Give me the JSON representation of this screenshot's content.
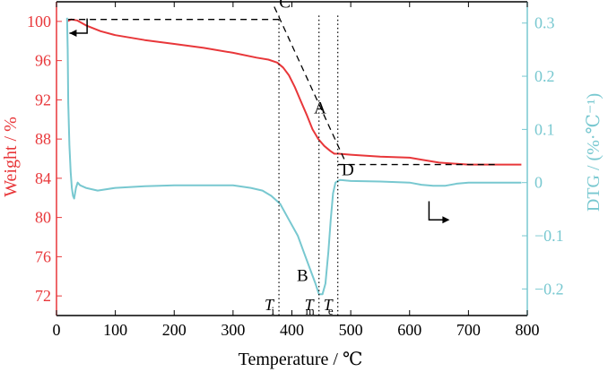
{
  "chart_data": {
    "type": "line",
    "xlabel": "Temperature / ℃",
    "ylabel_left": "Weight / %",
    "ylabel_right": "DTG / (%·℃⁻¹)",
    "xlim": [
      0,
      800
    ],
    "ylim_left": [
      70,
      102
    ],
    "ylim_right": [
      -0.25,
      0.34
    ],
    "x_ticks": [
      0,
      100,
      200,
      300,
      400,
      500,
      600,
      700,
      800
    ],
    "y_left_ticks": [
      72,
      76,
      80,
      84,
      88,
      92,
      96,
      100
    ],
    "y_right_ticks": [
      -0.2,
      -0.1,
      0,
      0.1,
      0.2,
      0.3
    ],
    "x_tick_labels": [
      "0",
      "100",
      "200",
      "300",
      "400",
      "500",
      "600",
      "700",
      "800"
    ],
    "y_left_tick_labels": [
      "72",
      "76",
      "80",
      "84",
      "88",
      "92",
      "96",
      "100"
    ],
    "y_right_tick_labels": [
      "−0.2",
      "−0.1",
      "0",
      "0.1",
      "0.2",
      "0.3"
    ],
    "colors": {
      "weight": "#e8373a",
      "dtg": "#78c8d0",
      "axis_left": "#e8373a",
      "axis_right": "#78c8d0",
      "guides": "#000000"
    },
    "series": [
      {
        "axis": "left",
        "x": [
          18,
          25,
          35,
          50,
          75,
          100,
          150,
          200,
          250,
          300,
          340,
          360,
          375,
          385,
          395,
          405,
          415,
          425,
          435,
          445,
          455,
          465,
          472,
          480,
          500,
          550,
          600,
          620,
          650,
          700,
          750,
          790
        ],
        "values": [
          100.0,
          100.2,
          100.1,
          99.6,
          99.0,
          98.6,
          98.1,
          97.7,
          97.3,
          96.8,
          96.3,
          96.1,
          95.8,
          95.3,
          94.5,
          93.3,
          91.9,
          90.5,
          89.0,
          88.0,
          87.3,
          86.8,
          86.5,
          86.5,
          86.4,
          86.2,
          86.1,
          85.9,
          85.6,
          85.4,
          85.4,
          85.4
        ]
      },
      {
        "axis": "right",
        "x": [
          18,
          19,
          20,
          22,
          24,
          26,
          28,
          30,
          33,
          36,
          40,
          50,
          70,
          100,
          150,
          200,
          250,
          300,
          330,
          350,
          365,
          380,
          395,
          410,
          420,
          430,
          440,
          446,
          452,
          457,
          462,
          466,
          470,
          474,
          478,
          482,
          490,
          500,
          550,
          600,
          620,
          640,
          660,
          680,
          700,
          750,
          790
        ],
        "values": [
          0.31,
          0.25,
          0.15,
          0.07,
          0.02,
          -0.01,
          -0.025,
          -0.03,
          -0.01,
          0.0,
          -0.005,
          -0.01,
          -0.015,
          -0.01,
          -0.007,
          -0.005,
          -0.005,
          -0.005,
          -0.01,
          -0.015,
          -0.025,
          -0.04,
          -0.07,
          -0.1,
          -0.13,
          -0.16,
          -0.19,
          -0.21,
          -0.21,
          -0.19,
          -0.13,
          -0.07,
          -0.02,
          0.0,
          0.003,
          0.005,
          0.004,
          0.003,
          0.002,
          0.0,
          -0.004,
          -0.006,
          -0.006,
          -0.002,
          0.0,
          0.0,
          0.0
        ]
      }
    ],
    "guide_lines": [
      {
        "from": [
          20,
          100.2
        ],
        "to": [
          385,
          100.2
        ]
      },
      {
        "from": [
          370,
          101.5
        ],
        "to": [
          490,
          85.8
        ]
      },
      {
        "from": [
          478,
          85.4
        ],
        "to": [
          745,
          85.4
        ]
      }
    ],
    "vertical_markers": [
      {
        "x": 378,
        "label": "T",
        "sub": "i"
      },
      {
        "x": 446,
        "label": "T",
        "sub": "m"
      },
      {
        "x": 478,
        "label": "T",
        "sub": "e"
      }
    ],
    "point_labels": [
      {
        "text": "C",
        "x": 388,
        "y": 101.4
      },
      {
        "text": "A",
        "x": 448,
        "y": 90.6
      },
      {
        "text": "D",
        "x": 495,
        "y": 84.3
      },
      {
        "text": "B",
        "x": 418,
        "y": 73.5
      }
    ]
  }
}
